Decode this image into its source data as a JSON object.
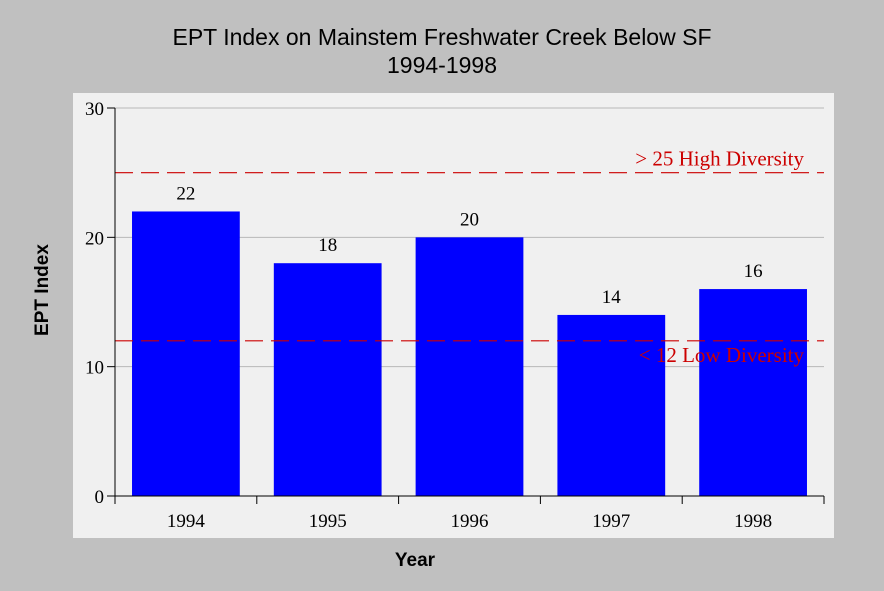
{
  "chart_data": {
    "type": "bar",
    "title": "EPT Index on Mainstem Freshwater Creek Below SF",
    "subtitle": "1994-1998",
    "xlabel": "Year",
    "ylabel": "EPT Index",
    "categories": [
      "1994",
      "1995",
      "1996",
      "1997",
      "1998"
    ],
    "values": [
      22,
      18,
      20,
      14,
      16
    ],
    "data_labels": [
      "22",
      "18",
      "20",
      "14",
      "16"
    ],
    "ylim": [
      0,
      30
    ],
    "yticks": [
      0,
      10,
      20,
      30
    ],
    "grid": true,
    "bar_color": "#0000ff",
    "reference_lines": [
      {
        "value": 25,
        "label": "> 25 High Diversity",
        "color": "#cc0000",
        "style": "dashed"
      },
      {
        "value": 12,
        "label": "< 12 Low Diversity",
        "color": "#cc0000",
        "style": "dashed"
      }
    ]
  }
}
